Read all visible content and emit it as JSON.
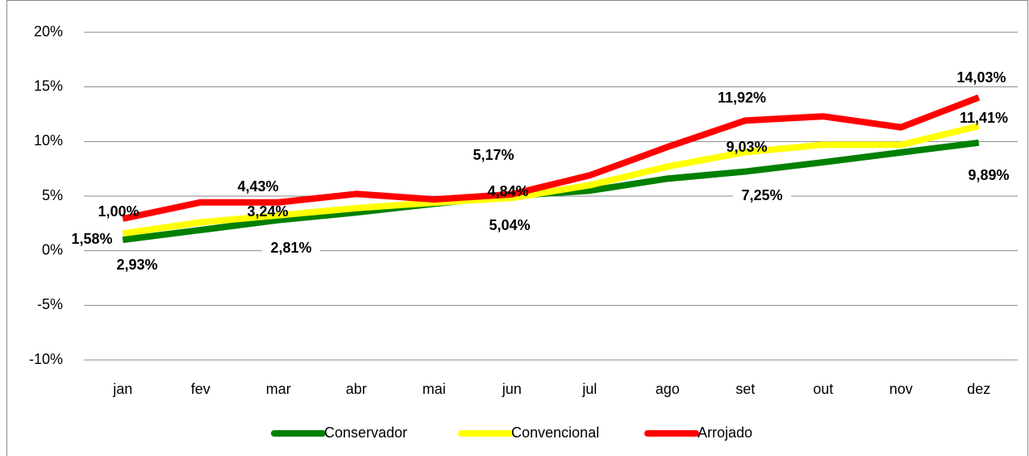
{
  "chart_data": {
    "type": "line",
    "categories": [
      "jan",
      "fev",
      "mar",
      "abr",
      "mai",
      "jun",
      "jul",
      "ago",
      "set",
      "out",
      "nov",
      "dez"
    ],
    "series": [
      {
        "name": "Conservador",
        "color": "#008000",
        "values": [
          1.0,
          1.9,
          2.81,
          3.5,
          4.3,
          5.04,
          5.5,
          6.6,
          7.25,
          8.1,
          9.0,
          9.89
        ],
        "value_labels": [
          "1,00%",
          null,
          "2,81%",
          null,
          null,
          "5,04%",
          null,
          null,
          "7,25%",
          null,
          null,
          "9,89%"
        ]
      },
      {
        "name": "Convencional",
        "color": "#ffff00",
        "values": [
          1.58,
          2.6,
          3.24,
          3.9,
          4.4,
          4.84,
          6.0,
          7.7,
          9.03,
          9.7,
          9.7,
          11.41
        ],
        "value_labels": [
          "1,58%",
          null,
          "3,24%",
          null,
          null,
          "4,84%",
          null,
          null,
          "9,03%",
          null,
          null,
          "11,41%"
        ]
      },
      {
        "name": "Arrojado",
        "color": "#ff0000",
        "values": [
          2.93,
          4.43,
          4.43,
          5.2,
          4.7,
          5.17,
          6.9,
          9.5,
          11.92,
          12.3,
          11.3,
          14.03
        ],
        "value_labels": [
          "2,93%",
          "4,43%",
          null,
          null,
          null,
          "5,17%",
          null,
          null,
          "11,92%",
          null,
          null,
          "14,03%"
        ]
      }
    ],
    "ylim": [
      -10,
      20
    ],
    "yticks": [
      {
        "value": -10,
        "label": "-10%"
      },
      {
        "value": -5,
        "label": "-5%"
      },
      {
        "value": 0,
        "label": "0%"
      },
      {
        "value": 5,
        "label": "5%"
      },
      {
        "value": 10,
        "label": "10%"
      },
      {
        "value": 15,
        "label": "15%"
      },
      {
        "value": 20,
        "label": "20%"
      }
    ],
    "grid": true,
    "legend": "bottom"
  }
}
